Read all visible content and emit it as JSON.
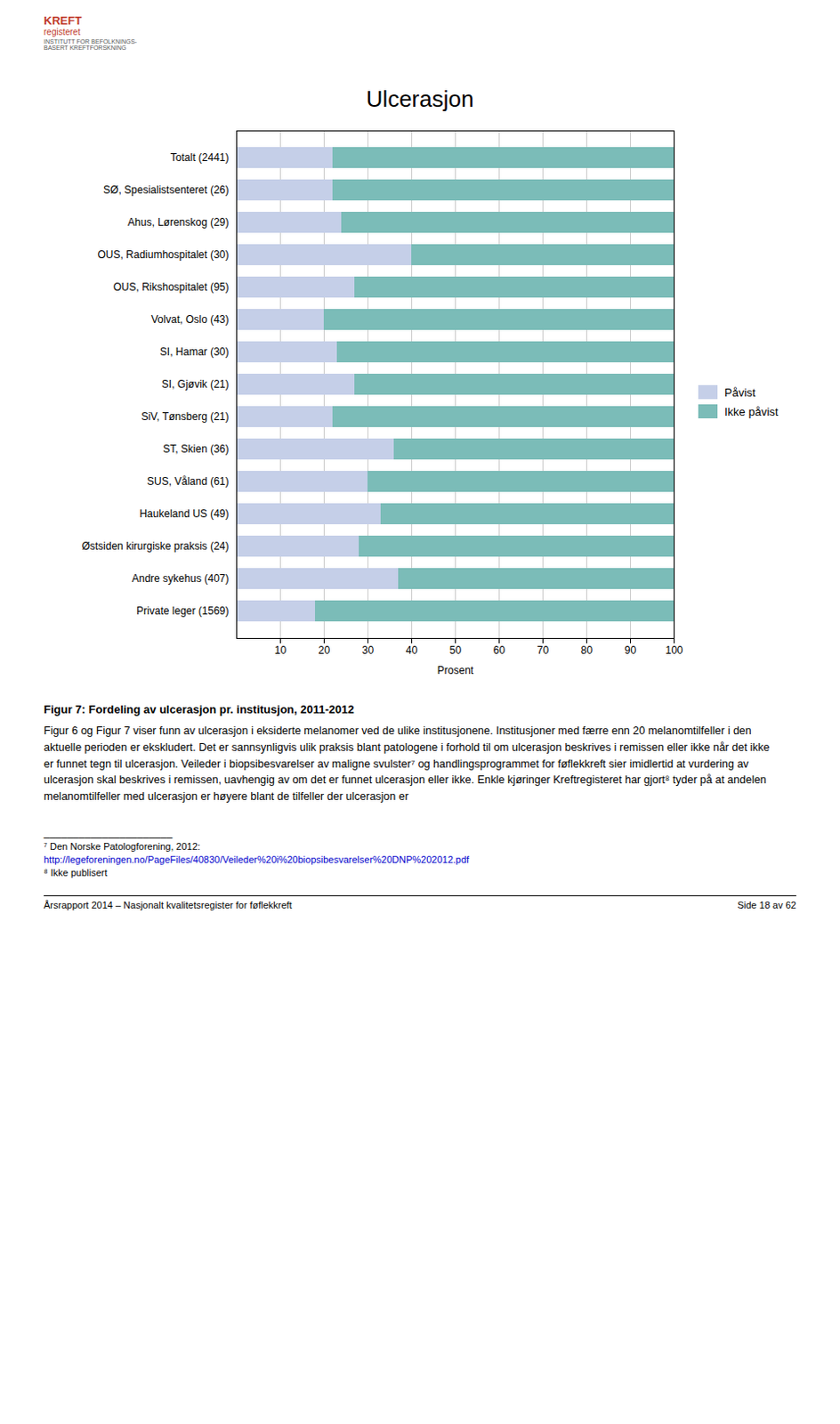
{
  "chart_data": {
    "type": "bar",
    "orientation": "horizontal",
    "stacked": true,
    "title": "Ulcerasjon",
    "xlabel": "Prosent",
    "categories": [
      "Totalt (2441)",
      "SØ, Spesialistsenteret (26)",
      "Ahus, Lørenskog (29)",
      "OUS, Radiumhospitalet (30)",
      "OUS, Rikshospitalet (95)",
      "Volvat, Oslo (43)",
      "SI, Hamar (30)",
      "SI, Gjøvik (21)",
      "SiV, Tønsberg (21)",
      "ST, Skien (36)",
      "SUS, Våland (61)",
      "Haukeland US (49)",
      "Østsiden kirurgiske praksis (24)",
      "Andre sykehus (407)",
      "Private leger (1569)"
    ],
    "series": [
      {
        "name": "Påvist",
        "color": "#c5cfe8",
        "values": [
          22,
          22,
          24,
          40,
          27,
          20,
          23,
          27,
          22,
          36,
          30,
          33,
          28,
          37,
          18
        ]
      },
      {
        "name": "Ikke påvist",
        "color": "#7bbcb8",
        "values": [
          78,
          78,
          76,
          60,
          73,
          80,
          77,
          73,
          78,
          64,
          70,
          67,
          72,
          63,
          82
        ]
      }
    ],
    "xlim": [
      0,
      100
    ],
    "xticks": [
      10,
      20,
      30,
      40,
      50,
      60,
      70,
      80,
      90,
      100
    ],
    "grid": true,
    "legend": "right",
    "annotations": [
      "KREFT",
      "registeret",
      "INSTITUTT FOR BEFOLKNINGS-\nBASERT KREFTFORSKNING",
      "Figur 7: Fordeling av ulcerasjon pr. institusjon, 2011-2012",
      "Figur 6 og Figur 7 viser funn av ulcerasjon i eksiderte melanomer ved de ulike institusjonene. Institusjoner med færre enn 20 melanomtilfeller i den aktuelle perioden er ekskludert. Det er sannsynligvis ulik praksis blant patologene i forhold til om ulcerasjon beskrives i remissen eller ikke når det ikke er funnet tegn til ulcerasjon. Veileder i biopsibesvarelser av maligne svulster⁷ og handlingsprogrammet for føflekkreft sier imidlertid at vurdering av ulcerasjon skal beskrives i remissen, uavhengig av om det er funnet ulcerasjon eller ikke. Enkle kjøringer Kreftregisteret har gjort⁸ tyder på at andelen melanomtilfeller med ulcerasjon er høyere blant de tilfeller der ulcerasjon er",
      "______________________",
      "⁷  Den Norske Patologforening, 2012:",
      "http://legeforeningen.no/PageFiles/40830/Veileder%20i%20biopsibesvarelser%20DNP%202012.pdf",
      "⁸  Ikke publisert",
      "Årsrapport 2014 – Nasjonalt kvalitetsregister for føflekkreft",
      "Side 18 av 62"
    ]
  }
}
